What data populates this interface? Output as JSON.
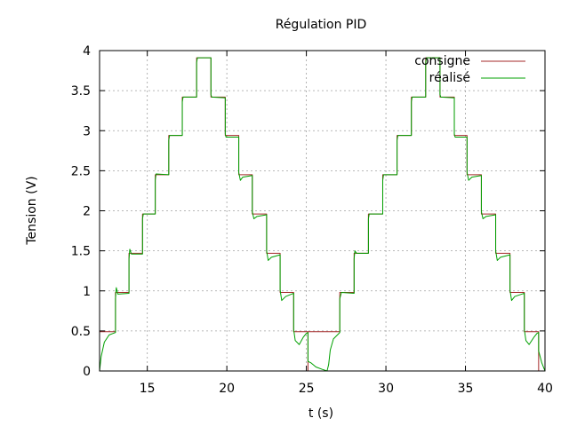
{
  "chart_data": {
    "type": "line",
    "title": "Régulation PID",
    "xlabel": "t (s)",
    "ylabel": "Tension (V)",
    "xlim": [
      12,
      40
    ],
    "ylim": [
      0,
      4
    ],
    "xticks": [
      15,
      20,
      25,
      30,
      35,
      40
    ],
    "xtick_labels": [
      "15",
      "20",
      "25",
      "30",
      "35",
      "40"
    ],
    "yticks": [
      0,
      0.5,
      1,
      1.5,
      2,
      2.5,
      3,
      3.5,
      4
    ],
    "ytick_labels": [
      "0",
      "0.5",
      "1",
      "1.5",
      "2",
      "2.5",
      "3",
      "3.5",
      "4"
    ],
    "grid": true,
    "legend_position": "top-right",
    "series": [
      {
        "name": "consigne",
        "color": "#a52a2a",
        "style": "step",
        "points": [
          [
            12.0,
            0.49
          ],
          [
            13.0,
            0.49
          ],
          [
            13.0,
            0.98
          ],
          [
            13.85,
            0.98
          ],
          [
            13.85,
            1.47
          ],
          [
            14.7,
            1.47
          ],
          [
            14.7,
            1.96
          ],
          [
            15.5,
            1.96
          ],
          [
            15.5,
            2.45
          ],
          [
            16.35,
            2.45
          ],
          [
            16.35,
            2.94
          ],
          [
            17.2,
            2.94
          ],
          [
            17.2,
            3.42
          ],
          [
            18.1,
            3.42
          ],
          [
            18.1,
            3.91
          ],
          [
            19.0,
            3.91
          ],
          [
            19.0,
            3.42
          ],
          [
            19.9,
            3.42
          ],
          [
            19.9,
            2.94
          ],
          [
            20.75,
            2.94
          ],
          [
            20.75,
            2.45
          ],
          [
            21.6,
            2.45
          ],
          [
            21.6,
            1.96
          ],
          [
            22.5,
            1.96
          ],
          [
            22.5,
            1.47
          ],
          [
            23.35,
            1.47
          ],
          [
            23.35,
            0.98
          ],
          [
            24.2,
            0.98
          ],
          [
            24.2,
            0.49
          ],
          [
            25.1,
            0.49
          ],
          [
            25.1,
            0.0
          ],
          [
            25.1,
            0.0
          ],
          [
            25.1,
            0.49
          ],
          [
            27.1,
            0.49
          ],
          [
            27.1,
            0.98
          ],
          [
            28.0,
            0.98
          ],
          [
            28.0,
            1.47
          ],
          [
            28.9,
            1.47
          ],
          [
            28.9,
            1.96
          ],
          [
            29.8,
            1.96
          ],
          [
            29.8,
            2.45
          ],
          [
            30.7,
            2.45
          ],
          [
            30.7,
            2.94
          ],
          [
            31.6,
            2.94
          ],
          [
            31.6,
            3.42
          ],
          [
            32.5,
            3.42
          ],
          [
            32.5,
            3.91
          ],
          [
            33.4,
            3.91
          ],
          [
            33.4,
            3.42
          ],
          [
            34.3,
            3.42
          ],
          [
            34.3,
            2.94
          ],
          [
            35.1,
            2.94
          ],
          [
            35.1,
            2.45
          ],
          [
            36.0,
            2.45
          ],
          [
            36.0,
            1.96
          ],
          [
            36.9,
            1.96
          ],
          [
            36.9,
            1.47
          ],
          [
            37.8,
            1.47
          ],
          [
            37.8,
            0.98
          ],
          [
            38.7,
            0.98
          ],
          [
            38.7,
            0.49
          ],
          [
            39.6,
            0.49
          ],
          [
            39.6,
            0.0
          ],
          [
            40.0,
            0.0
          ]
        ]
      },
      {
        "name": "réalisé",
        "color": "#00a000",
        "style": "line",
        "points": [
          [
            12.0,
            0.0
          ],
          [
            12.1,
            0.18
          ],
          [
            12.3,
            0.36
          ],
          [
            12.6,
            0.45
          ],
          [
            13.0,
            0.48
          ],
          [
            13.0,
            0.9
          ],
          [
            13.05,
            1.04
          ],
          [
            13.15,
            0.96
          ],
          [
            13.85,
            0.97
          ],
          [
            13.85,
            1.4
          ],
          [
            13.9,
            1.52
          ],
          [
            14.0,
            1.46
          ],
          [
            14.7,
            1.46
          ],
          [
            14.7,
            1.9
          ],
          [
            14.75,
            1.96
          ],
          [
            15.5,
            1.96
          ],
          [
            15.5,
            2.38
          ],
          [
            15.55,
            2.46
          ],
          [
            16.35,
            2.45
          ],
          [
            16.35,
            2.88
          ],
          [
            16.4,
            2.94
          ],
          [
            17.2,
            2.94
          ],
          [
            17.2,
            3.36
          ],
          [
            17.25,
            3.42
          ],
          [
            18.1,
            3.42
          ],
          [
            18.1,
            3.85
          ],
          [
            18.15,
            3.91
          ],
          [
            19.0,
            3.91
          ],
          [
            19.0,
            3.45
          ],
          [
            19.05,
            3.42
          ],
          [
            19.9,
            3.41
          ],
          [
            19.9,
            2.96
          ],
          [
            19.95,
            2.92
          ],
          [
            20.75,
            2.92
          ],
          [
            20.75,
            2.48
          ],
          [
            20.85,
            2.38
          ],
          [
            21.0,
            2.42
          ],
          [
            21.6,
            2.44
          ],
          [
            21.6,
            1.99
          ],
          [
            21.7,
            1.9
          ],
          [
            21.9,
            1.93
          ],
          [
            22.5,
            1.95
          ],
          [
            22.5,
            1.5
          ],
          [
            22.6,
            1.38
          ],
          [
            22.8,
            1.42
          ],
          [
            23.35,
            1.45
          ],
          [
            23.35,
            1.01
          ],
          [
            23.45,
            0.88
          ],
          [
            23.7,
            0.93
          ],
          [
            24.2,
            0.97
          ],
          [
            24.2,
            0.52
          ],
          [
            24.3,
            0.38
          ],
          [
            24.55,
            0.33
          ],
          [
            24.8,
            0.42
          ],
          [
            25.0,
            0.47
          ],
          [
            25.1,
            0.48
          ],
          [
            25.1,
            0.12
          ],
          [
            25.3,
            0.1
          ],
          [
            25.6,
            0.05
          ],
          [
            26.0,
            0.02
          ],
          [
            26.3,
            0.0
          ],
          [
            26.4,
            0.08
          ],
          [
            26.5,
            0.26
          ],
          [
            26.7,
            0.4
          ],
          [
            27.0,
            0.46
          ],
          [
            27.1,
            0.48
          ],
          [
            27.1,
            0.9
          ],
          [
            27.2,
            0.98
          ],
          [
            28.0,
            0.97
          ],
          [
            28.0,
            1.4
          ],
          [
            28.05,
            1.5
          ],
          [
            28.15,
            1.47
          ],
          [
            28.9,
            1.47
          ],
          [
            28.9,
            1.9
          ],
          [
            28.95,
            1.96
          ],
          [
            29.8,
            1.96
          ],
          [
            29.8,
            2.38
          ],
          [
            29.85,
            2.45
          ],
          [
            30.7,
            2.45
          ],
          [
            30.7,
            2.88
          ],
          [
            30.75,
            2.94
          ],
          [
            31.6,
            2.94
          ],
          [
            31.6,
            3.36
          ],
          [
            31.65,
            3.42
          ],
          [
            32.5,
            3.42
          ],
          [
            32.5,
            3.85
          ],
          [
            32.55,
            3.91
          ],
          [
            33.4,
            3.91
          ],
          [
            33.4,
            3.45
          ],
          [
            33.45,
            3.42
          ],
          [
            34.3,
            3.41
          ],
          [
            34.3,
            2.96
          ],
          [
            34.35,
            2.92
          ],
          [
            35.1,
            2.92
          ],
          [
            35.1,
            2.48
          ],
          [
            35.2,
            2.38
          ],
          [
            35.4,
            2.42
          ],
          [
            36.0,
            2.44
          ],
          [
            36.0,
            1.99
          ],
          [
            36.1,
            1.9
          ],
          [
            36.3,
            1.93
          ],
          [
            36.9,
            1.95
          ],
          [
            36.9,
            1.5
          ],
          [
            37.0,
            1.38
          ],
          [
            37.2,
            1.42
          ],
          [
            37.8,
            1.45
          ],
          [
            37.8,
            1.01
          ],
          [
            37.9,
            0.88
          ],
          [
            38.1,
            0.93
          ],
          [
            38.7,
            0.97
          ],
          [
            38.7,
            0.52
          ],
          [
            38.8,
            0.38
          ],
          [
            39.0,
            0.33
          ],
          [
            39.3,
            0.42
          ],
          [
            39.5,
            0.47
          ],
          [
            39.6,
            0.48
          ],
          [
            39.6,
            0.25
          ],
          [
            39.8,
            0.1
          ],
          [
            40.0,
            0.0
          ]
        ]
      }
    ]
  }
}
